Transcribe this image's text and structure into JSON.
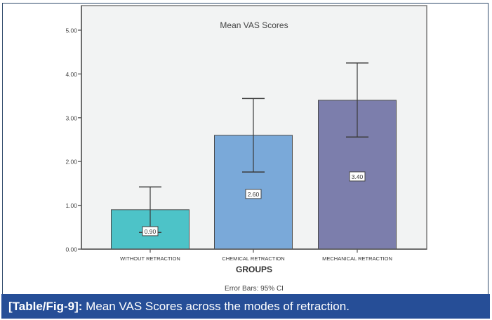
{
  "chart_data": {
    "type": "bar",
    "title": "Mean VAS Scores",
    "xlabel": "GROUPS",
    "ylabel": "",
    "footnote": "Error Bars: 95% CI",
    "categories": [
      "WITHOUT RETRACTION",
      "CHEMICAL RETRACTION",
      "MECHANICAL RETRACTION"
    ],
    "values": [
      0.9,
      2.6,
      3.4
    ],
    "value_labels": [
      "0.90",
      "2.60",
      "3.40"
    ],
    "error_low": [
      0.38,
      1.76,
      2.56
    ],
    "error_high": [
      1.42,
      3.44,
      4.25
    ],
    "colors": [
      "#4dc3c8",
      "#7aa9d9",
      "#7c7eac"
    ],
    "ylim": [
      0,
      5.5
    ],
    "yticks": [
      0,
      1,
      2,
      3,
      4,
      5
    ],
    "ytick_labels": [
      "0.00",
      "1.00",
      "2.00",
      "3.00",
      "4.00",
      "5.00"
    ],
    "grid": false,
    "legend": "none"
  },
  "caption": {
    "label": "[Table/Fig-9]:",
    "text": " Mean VAS Scores across the modes of retraction."
  },
  "colors": {
    "caption_band": "#264e97",
    "plot_background": "#f2f3f3"
  }
}
